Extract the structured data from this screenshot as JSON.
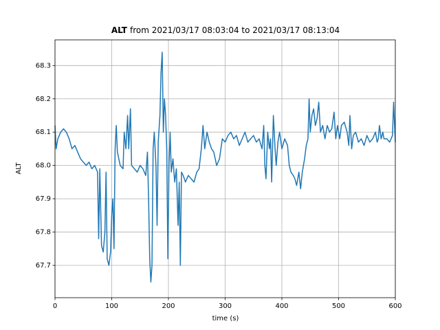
{
  "chart_data": {
    "type": "line",
    "title_variable": "ALT",
    "title_text": "from 2021/03/17 08:03:04 to 2021/03/17 08:13:04",
    "xlabel": "time (s)",
    "ylabel": "ALT",
    "x": [
      0,
      2,
      5,
      10,
      15,
      20,
      25,
      30,
      35,
      40,
      45,
      50,
      55,
      60,
      65,
      70,
      75,
      77,
      79,
      82,
      85,
      88,
      90,
      92,
      95,
      98,
      100,
      102,
      104,
      106,
      108,
      110,
      115,
      120,
      122,
      125,
      128,
      130,
      133,
      135,
      140,
      145,
      150,
      155,
      160,
      163,
      165,
      167,
      169,
      171,
      173,
      175,
      178,
      180,
      182,
      185,
      187,
      189,
      191,
      193,
      195,
      197,
      199,
      201,
      203,
      205,
      208,
      211,
      214,
      217,
      219,
      221,
      223,
      226,
      230,
      235,
      240,
      245,
      250,
      254,
      258,
      261,
      264,
      268,
      272,
      276,
      280,
      285,
      290,
      295,
      300,
      305,
      310,
      315,
      320,
      325,
      330,
      335,
      340,
      345,
      350,
      355,
      360,
      365,
      368,
      370,
      372,
      375,
      378,
      380,
      382,
      385,
      388,
      390,
      393,
      396,
      400,
      405,
      410,
      413,
      416,
      420,
      423,
      426,
      430,
      433,
      436,
      440,
      443,
      446,
      448,
      450,
      453,
      456,
      459,
      462,
      465,
      468,
      472,
      476,
      480,
      484,
      488,
      492,
      495,
      498,
      502,
      505,
      510,
      515,
      518,
      520,
      523,
      526,
      530,
      535,
      540,
      545,
      550,
      555,
      560,
      565,
      568,
      570,
      572,
      575,
      578,
      580,
      585,
      590,
      595,
      597,
      600
    ],
    "series": [
      {
        "name": "ALT",
        "color": "#1f77b4",
        "values": [
          68.12,
          68.05,
          68.08,
          68.1,
          68.11,
          68.1,
          68.08,
          68.05,
          68.06,
          68.04,
          68.02,
          68.01,
          68.0,
          68.01,
          67.99,
          68.0,
          67.98,
          67.78,
          67.99,
          67.76,
          67.74,
          67.8,
          67.98,
          67.72,
          67.7,
          67.74,
          67.85,
          67.9,
          67.75,
          68.05,
          68.12,
          68.04,
          68.0,
          67.99,
          68.1,
          68.05,
          68.15,
          68.05,
          68.17,
          68.0,
          67.99,
          67.98,
          68.0,
          67.99,
          67.97,
          68.04,
          67.9,
          67.72,
          67.65,
          67.7,
          68.05,
          68.1,
          68.0,
          67.82,
          68.07,
          68.15,
          68.28,
          68.34,
          68.1,
          68.2,
          68.15,
          68.05,
          67.72,
          68.0,
          68.1,
          67.98,
          68.02,
          67.95,
          67.99,
          67.82,
          67.95,
          67.7,
          67.98,
          67.97,
          67.95,
          67.97,
          67.96,
          67.95,
          67.98,
          67.99,
          68.05,
          68.12,
          68.05,
          68.1,
          68.07,
          68.05,
          68.04,
          68.0,
          68.02,
          68.08,
          68.07,
          68.09,
          68.1,
          68.08,
          68.09,
          68.06,
          68.08,
          68.1,
          68.07,
          68.08,
          68.09,
          68.07,
          68.08,
          68.05,
          68.12,
          68.0,
          67.96,
          68.1,
          68.05,
          68.08,
          67.95,
          68.15,
          68.05,
          68.0,
          68.07,
          68.1,
          68.05,
          68.08,
          68.06,
          68.0,
          67.98,
          67.97,
          67.96,
          67.94,
          67.98,
          67.93,
          67.98,
          68.02,
          68.06,
          68.08,
          68.2,
          68.1,
          68.15,
          68.17,
          68.12,
          68.14,
          68.19,
          68.1,
          68.12,
          68.08,
          68.12,
          68.1,
          68.11,
          68.16,
          68.08,
          68.12,
          68.08,
          68.12,
          68.13,
          68.1,
          68.06,
          68.15,
          68.05,
          68.09,
          68.1,
          68.07,
          68.08,
          68.06,
          68.09,
          68.07,
          68.08,
          68.1,
          68.07,
          68.08,
          68.12,
          68.08,
          68.1,
          68.08,
          68.08,
          68.07,
          68.09,
          68.19,
          68.07
        ]
      }
    ],
    "xlim": [
      0,
      600
    ],
    "xticks": [
      0,
      100,
      200,
      300,
      400,
      500,
      600
    ],
    "ylim": [
      67.603,
      68.377
    ],
    "yticks": [
      67.7,
      67.8,
      67.9,
      {
        "value": 68,
        "label": "68.0"
      },
      68.1,
      68.2,
      68.3
    ],
    "grid": true
  }
}
